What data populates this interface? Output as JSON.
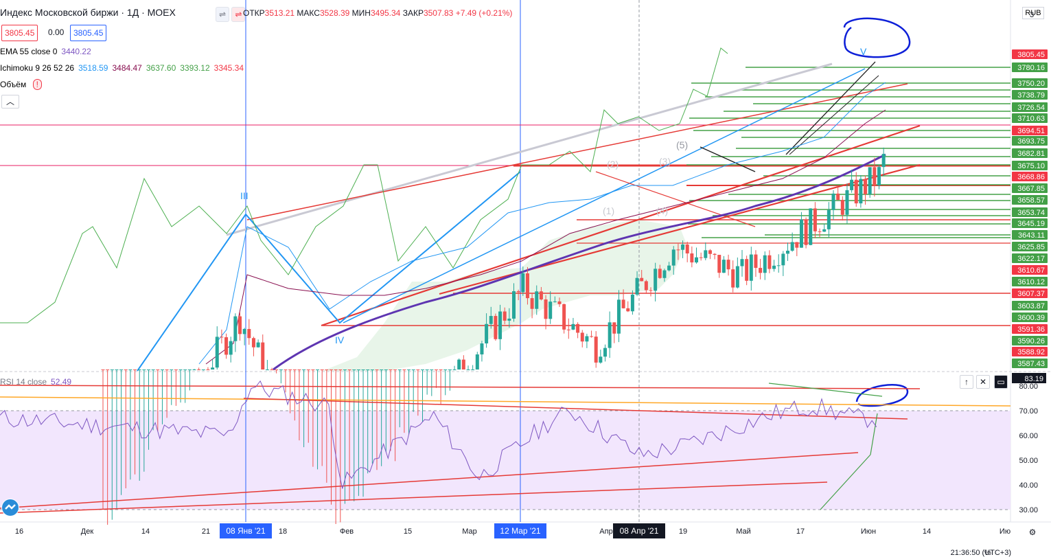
{
  "header": {
    "title": "Индекс Московской биржи · 1Д · MOEX",
    "ohlc_open_label": "ОТКР",
    "ohlc_open": "3513.21",
    "ohlc_high_label": "МАКС",
    "ohlc_high": "3528.39",
    "ohlc_low_label": "МИН",
    "ohlc_low": "3495.34",
    "ohlc_close_label": "ЗАКР",
    "ohlc_close": "3507.83",
    "ohlc_change": "+7.49 (+0.21%)",
    "bid": "3805.45",
    "spread": "0.00",
    "ask": "3805.45",
    "currency": "RUB",
    "price_scale_top": "3"
  },
  "indicators": {
    "ema_label": "EMA 55 close 0",
    "ema_value": "3440.22",
    "ichimoku_label": "Ichimoku 9 26 52 26",
    "ichimoku_values": [
      "3518.59",
      "3484.47",
      "3637.60",
      "3393.12",
      "3345.34"
    ],
    "volume_label": "Объём",
    "volume_warning": "!",
    "collapse_icon": "chevron-up-icon",
    "rsi_label": "RSI 14 close",
    "rsi_value": "52.49",
    "rsi_axis_current": "83.19"
  },
  "chart_data": {
    "type": "candlestick",
    "title": "Индекс Московской биржи",
    "price_axis_labels": [
      "3805.45",
      "3780.16",
      "3750.20",
      "3738.79",
      "3726.54",
      "3710.63",
      "3694.51",
      "3693.75",
      "3682.81",
      "3675.10",
      "3668.86",
      "3667.85",
      "3658.57",
      "3653.74",
      "3645.19",
      "3643.11",
      "3625.85",
      "3622.17",
      "3610.67",
      "3610.12",
      "3607.37",
      "3603.87",
      "3600.39",
      "3591.36",
      "3590.26",
      "3588.92",
      "3587.43"
    ],
    "rsi_axis_labels": [
      "80.00",
      "70.00",
      "60.00",
      "50.00",
      "40.00",
      "30.00"
    ],
    "x_tick_labels": [
      "16",
      "Дек",
      "14",
      "21",
      "08 Янв '21",
      "18",
      "Фев",
      "15",
      "Мар",
      "12 Мар '21",
      "Апр",
      "08 Апр '21",
      "19",
      "Май",
      "17",
      "Июн",
      "14",
      "Ию"
    ],
    "wave_labels": [
      "III",
      "IV",
      "V",
      "(1)",
      "(2)",
      "(3)",
      "(4)",
      "(5)"
    ],
    "highlighted_dates": [
      "08 Янв '21",
      "12 Мар '21",
      "08 Апр '21"
    ],
    "current_price": 3805.45,
    "rsi_current": 52.49
  },
  "bottom_bar": {
    "time": "21:36:50 (UTC+3)",
    "percent": "%"
  },
  "colors": {
    "up": "#26a69a",
    "down": "#ef5350",
    "rsi_line": "#7e57c2",
    "rsi_fill": "#f2e6fd",
    "ichimoku_green": "#4caf50",
    "trend_red": "#e53935",
    "annotation_blue": "#0d1fd8"
  }
}
